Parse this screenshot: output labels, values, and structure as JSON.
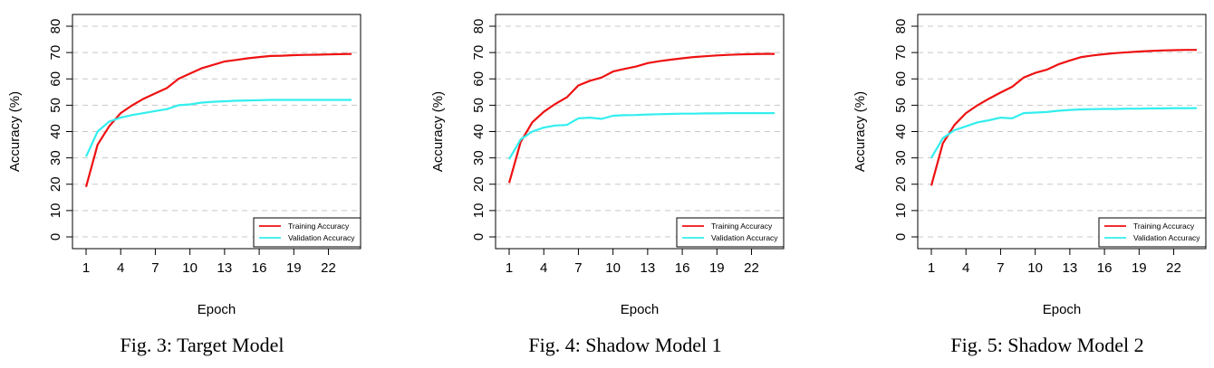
{
  "colors": {
    "training": "#ee1111",
    "validation": "#33eeee",
    "grid": "#c8c8c8"
  },
  "chart_data": [
    {
      "type": "line",
      "caption": "Fig. 3: Target Model",
      "xlabel": "Epoch",
      "ylabel": "Accuracy (%)",
      "xlim": [
        1,
        24
      ],
      "ylim": [
        0,
        80
      ],
      "xticks": [
        "1",
        "4",
        "7",
        "10",
        "13",
        "16",
        "19",
        "22"
      ],
      "yticks": [
        "0",
        "10",
        "20",
        "30",
        "40",
        "50",
        "60",
        "70",
        "80"
      ],
      "grid": "horizontal dashed",
      "legend_position": "bottom-right",
      "x": [
        1,
        2,
        3,
        4,
        5,
        6,
        7,
        8,
        9,
        10,
        11,
        12,
        13,
        14,
        15,
        16,
        17,
        18,
        19,
        20,
        21,
        22,
        23,
        24
      ],
      "series": [
        {
          "name": "Training Accuracy",
          "color_key": "training",
          "values": [
            19,
            35,
            42,
            47,
            50,
            52.5,
            54.5,
            56.5,
            60,
            62,
            64,
            65.3,
            66.6,
            67.2,
            67.8,
            68.3,
            68.7,
            68.8,
            69,
            69.1,
            69.2,
            69.3,
            69.4,
            69.5
          ]
        },
        {
          "name": "Validation Accuracy",
          "color_key": "validation",
          "values": [
            30.5,
            40,
            43.8,
            45.3,
            46.3,
            47,
            47.8,
            48.5,
            50,
            50.3,
            51,
            51.3,
            51.5,
            51.7,
            51.8,
            51.9,
            52,
            52,
            52,
            52,
            52,
            52,
            52,
            52
          ]
        }
      ]
    },
    {
      "type": "line",
      "caption": "Fig. 4: Shadow Model 1",
      "xlabel": "Epoch",
      "ylabel": "Accuracy (%)",
      "xlim": [
        1,
        24
      ],
      "ylim": [
        0,
        80
      ],
      "xticks": [
        "1",
        "4",
        "7",
        "10",
        "13",
        "16",
        "19",
        "22"
      ],
      "yticks": [
        "0",
        "10",
        "20",
        "30",
        "40",
        "50",
        "60",
        "70",
        "80"
      ],
      "grid": "horizontal dashed",
      "legend_position": "bottom-right",
      "x": [
        1,
        2,
        3,
        4,
        5,
        6,
        7,
        8,
        9,
        10,
        11,
        12,
        13,
        14,
        15,
        16,
        17,
        18,
        19,
        20,
        21,
        22,
        23,
        24
      ],
      "series": [
        {
          "name": "Training Accuracy",
          "color_key": "training",
          "values": [
            20.5,
            36,
            43.5,
            47.5,
            50.5,
            53,
            57.5,
            59.3,
            60.5,
            62.8,
            63.8,
            64.7,
            66,
            66.7,
            67.3,
            67.8,
            68.3,
            68.6,
            68.9,
            69.1,
            69.3,
            69.4,
            69.5,
            69.5
          ]
        },
        {
          "name": "Validation Accuracy",
          "color_key": "validation",
          "values": [
            29.5,
            37,
            40,
            41.5,
            42.3,
            42.5,
            45,
            45.3,
            44.8,
            46,
            46.2,
            46.3,
            46.5,
            46.6,
            46.7,
            46.8,
            46.8,
            46.9,
            46.9,
            47,
            47,
            47,
            47,
            47
          ]
        }
      ]
    },
    {
      "type": "line",
      "caption": "Fig. 5: Shadow Model 2",
      "xlabel": "Epoch",
      "ylabel": "Accuracy (%)",
      "xlim": [
        1,
        24
      ],
      "ylim": [
        0,
        80
      ],
      "xticks": [
        "1",
        "4",
        "7",
        "10",
        "13",
        "16",
        "19",
        "22"
      ],
      "yticks": [
        "0",
        "10",
        "20",
        "30",
        "40",
        "50",
        "60",
        "70",
        "80"
      ],
      "grid": "horizontal dashed",
      "legend_position": "bottom-right",
      "x": [
        1,
        2,
        3,
        4,
        5,
        6,
        7,
        8,
        9,
        10,
        11,
        12,
        13,
        14,
        15,
        16,
        17,
        18,
        19,
        20,
        21,
        22,
        23,
        24
      ],
      "series": [
        {
          "name": "Training Accuracy",
          "color_key": "training",
          "values": [
            19.5,
            35.5,
            42.5,
            47,
            50,
            52.5,
            54.8,
            57,
            60.5,
            62.3,
            63.5,
            65.5,
            67,
            68.3,
            68.9,
            69.4,
            69.8,
            70.1,
            70.4,
            70.6,
            70.8,
            70.9,
            71,
            71
          ]
        },
        {
          "name": "Validation Accuracy",
          "color_key": "validation",
          "values": [
            30,
            37.5,
            40.5,
            42,
            43.5,
            44.3,
            45.3,
            45,
            47,
            47.2,
            47.4,
            47.9,
            48.2,
            48.4,
            48.5,
            48.6,
            48.6,
            48.7,
            48.7,
            48.8,
            48.8,
            48.9,
            48.9,
            48.9
          ]
        }
      ]
    }
  ]
}
